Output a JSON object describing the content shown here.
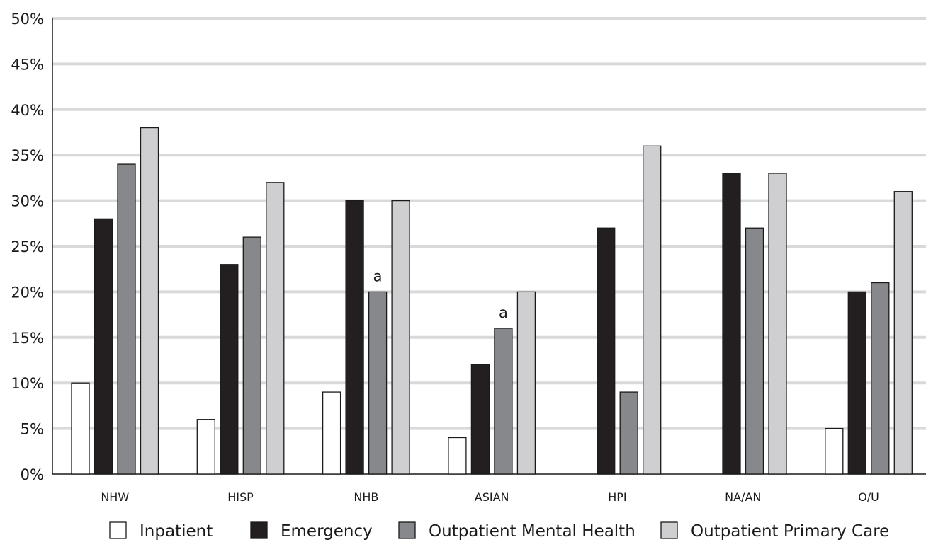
{
  "chart_data": {
    "type": "bar",
    "categories": [
      "NHW",
      "HISP",
      "NHB",
      "ASIAN",
      "HPI",
      "NA/AN",
      "O/U"
    ],
    "series": [
      {
        "name": "Inpatient",
        "color": "#ffffff",
        "values": [
          10,
          6,
          9,
          4,
          null,
          null,
          5
        ]
      },
      {
        "name": "Emergency",
        "color": "#231f20",
        "values": [
          28,
          23,
          30,
          12,
          27,
          33,
          20
        ]
      },
      {
        "name": "Outpatient Mental Health",
        "color": "#87888b",
        "values": [
          34,
          26,
          20,
          16,
          9,
          27,
          21
        ]
      },
      {
        "name": "Outpatient Primary Care",
        "color": "#cfcfd1",
        "values": [
          38,
          32,
          30,
          20,
          36,
          33,
          31
        ]
      }
    ],
    "ylim": [
      0,
      50
    ],
    "yticks": [
      0,
      5,
      10,
      15,
      20,
      25,
      30,
      35,
      40,
      45,
      50
    ],
    "ytick_format": "percent",
    "grid": true,
    "legend": "bottom",
    "annotations": [
      {
        "text": "a",
        "category": "NHB",
        "series": "Outpatient Mental Health"
      },
      {
        "text": "a",
        "category": "ASIAN",
        "series": "Outpatient Mental Health"
      }
    ]
  }
}
